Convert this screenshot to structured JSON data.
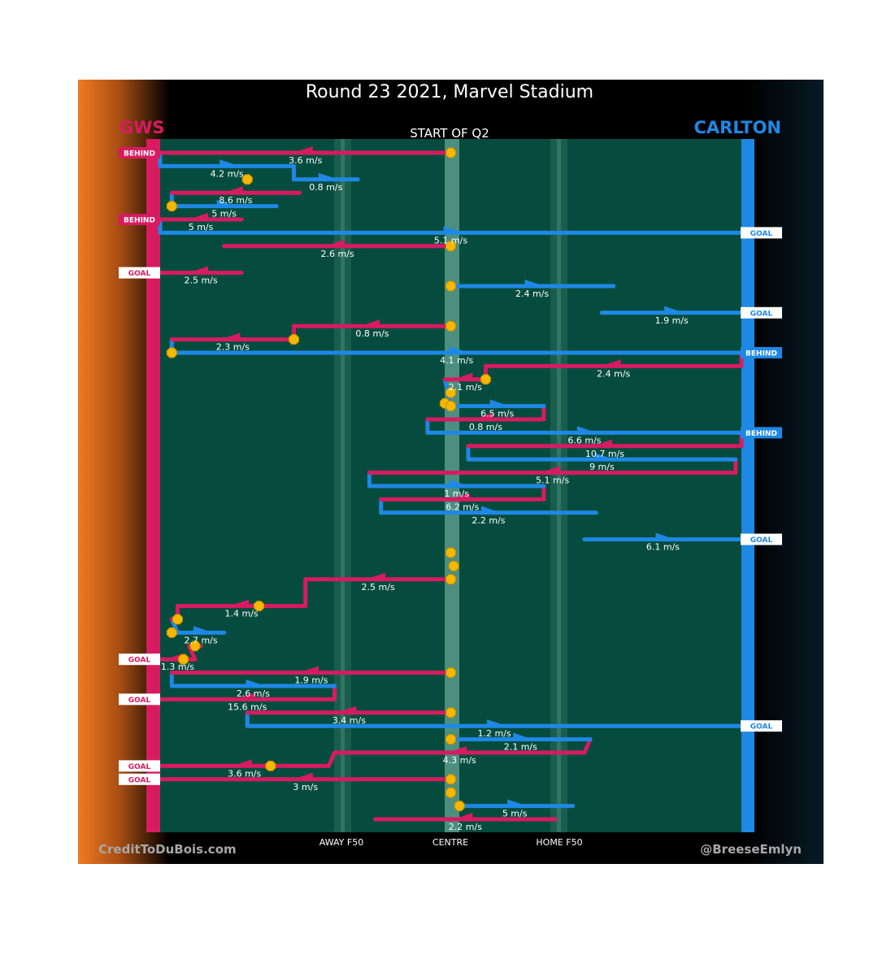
{
  "chart_data": {
    "type": "line",
    "title": "Round 23 2021, Marvel Stadium",
    "subtitle": "START OF Q2",
    "teams": {
      "away": {
        "name": "GWS",
        "color": "#d81b60"
      },
      "home": {
        "name": "CARLTON",
        "color": "#1e88e5"
      }
    },
    "axis_labels": {
      "away_f50": "AWAY F50",
      "centre": "CENTRE",
      "home_f50": "HOME F50"
    },
    "credits": {
      "left": "CreditToDuBois.com",
      "right": "@BreeseEmlyn"
    },
    "x_range": [
      0,
      100
    ],
    "y_range": [
      0,
      51
    ],
    "reference_lines": {
      "away_f50": 30,
      "centre": 50,
      "home_f50": 70
    },
    "badge_colors": {
      "goal_fill": "#ffffff",
      "behind_fill": "#d81b60"
    },
    "marker_color": "#f5b800",
    "events": [
      {
        "x": 0,
        "y": 1,
        "team": "away",
        "outcome": "BEHIND"
      },
      {
        "x": 0,
        "y": 6,
        "team": "away",
        "outcome": "BEHIND"
      },
      {
        "x": 100,
        "y": 7,
        "team": "home",
        "outcome": "GOAL"
      },
      {
        "x": 0,
        "y": 10,
        "team": "away",
        "outcome": "GOAL"
      },
      {
        "x": 100,
        "y": 13,
        "team": "home",
        "outcome": "GOAL"
      },
      {
        "x": 100,
        "y": 16,
        "team": "home",
        "outcome": "BEHIND"
      },
      {
        "x": 100,
        "y": 22,
        "team": "home",
        "outcome": "BEHIND"
      },
      {
        "x": 100,
        "y": 30,
        "team": "home",
        "outcome": "GOAL"
      },
      {
        "x": 0,
        "y": 39,
        "team": "away",
        "outcome": "GOAL"
      },
      {
        "x": 0,
        "y": 42,
        "team": "away",
        "outcome": "GOAL"
      },
      {
        "x": 100,
        "y": 44,
        "team": "home",
        "outcome": "GOAL"
      },
      {
        "x": 0,
        "y": 47,
        "team": "away",
        "outcome": "GOAL"
      },
      {
        "x": 0,
        "y": 48,
        "team": "away",
        "outcome": "GOAL"
      }
    ],
    "stoppages": [
      {
        "x": 50,
        "y": 1
      },
      {
        "x": 15,
        "y": 3
      },
      {
        "x": 2,
        "y": 5
      },
      {
        "x": 50,
        "y": 8
      },
      {
        "x": 50,
        "y": 11
      },
      {
        "x": 50,
        "y": 14
      },
      {
        "x": 23,
        "y": 15
      },
      {
        "x": 2,
        "y": 16
      },
      {
        "x": 56,
        "y": 18
      },
      {
        "x": 50,
        "y": 19
      },
      {
        "x": 49,
        "y": 19.8
      },
      {
        "x": 50,
        "y": 20
      },
      {
        "x": 50,
        "y": 31
      },
      {
        "x": 50.5,
        "y": 32
      },
      {
        "x": 50,
        "y": 33
      },
      {
        "x": 17,
        "y": 35
      },
      {
        "x": 3,
        "y": 36
      },
      {
        "x": 2,
        "y": 37
      },
      {
        "x": 6,
        "y": 38
      },
      {
        "x": 4,
        "y": 39
      },
      {
        "x": 50,
        "y": 40
      },
      {
        "x": 50,
        "y": 43
      },
      {
        "x": 50,
        "y": 45
      },
      {
        "x": 19,
        "y": 47
      },
      {
        "x": 50,
        "y": 48
      },
      {
        "x": 50,
        "y": 49
      },
      {
        "x": 51.5,
        "y": 50
      }
    ],
    "series": [
      {
        "name": "GWS",
        "team": "away",
        "segments": [
          {
            "y": 1,
            "x1": 50,
            "x2": 0,
            "speed": "3.6 m/s"
          },
          {
            "y": 4,
            "x1": 24,
            "x2": 2,
            "speed": "8.6 m/s"
          },
          {
            "y": 6,
            "x1": 14,
            "x2": 0,
            "speed": "5 m/s"
          },
          {
            "y": 8,
            "x1": 50,
            "x2": 11,
            "speed": "2.6 m/s"
          },
          {
            "y": 10,
            "x1": 14,
            "x2": 0,
            "speed": "2.5 m/s"
          },
          {
            "y": 14,
            "x1": 50,
            "x2": 23,
            "speed": "0.8 m/s"
          },
          {
            "y": 15,
            "x1": 23,
            "x2": 2,
            "speed": "2.3 m/s"
          },
          {
            "y": 17,
            "x1": 100,
            "x2": 56,
            "speed": "2.4 m/s"
          },
          {
            "y": 18,
            "x1": 56,
            "x2": 49,
            "speed": "2.1 m/s"
          },
          {
            "y": 21,
            "x1": 66,
            "x2": 46,
            "speed": "0.8 m/s"
          },
          {
            "y": 23,
            "x1": 100,
            "x2": 53,
            "speed": "10.7 m/s"
          },
          {
            "y": 25,
            "x1": 99,
            "x2": 36,
            "speed": "5.1 m/s"
          },
          {
            "y": 27,
            "x1": 66,
            "x2": 38,
            "speed": "6.2 m/s"
          },
          {
            "y": 33,
            "x1": 50,
            "x2": 25,
            "speed": "2.5 m/s"
          },
          {
            "y": 35,
            "x1": 25,
            "x2": 3,
            "speed": "1.4 m/s"
          },
          {
            "y": 36,
            "x1": 3,
            "x2": 2,
            "speed": ""
          },
          {
            "y": 38,
            "x1": 7,
            "x2": 5,
            "speed": ""
          },
          {
            "y": 39,
            "x1": 6,
            "x2": 0,
            "speed": "1.3 m/s"
          },
          {
            "y": 40,
            "x1": 50,
            "x2": 2,
            "speed": "1.9 m/s"
          },
          {
            "y": 42,
            "x1": 30,
            "x2": 0,
            "speed": "15.6 m/s"
          },
          {
            "y": 43,
            "x1": 50,
            "x2": 15,
            "speed": "3.4 m/s"
          },
          {
            "y": 46,
            "x1": 73,
            "x2": 30,
            "speed": "4.3 m/s"
          },
          {
            "y": 47,
            "x1": 29,
            "x2": 0,
            "speed": "3.6 m/s"
          },
          {
            "y": 48,
            "x1": 50,
            "x2": 0,
            "speed": "3 m/s"
          },
          {
            "y": 51,
            "x1": 68,
            "x2": 37,
            "speed": "2.2 m/s"
          }
        ]
      },
      {
        "name": "CARLTON",
        "team": "home",
        "segments": [
          {
            "y": 2,
            "x1": 0,
            "x2": 23,
            "speed": "4.2 m/s"
          },
          {
            "y": 3,
            "x1": 23,
            "x2": 34,
            "speed": "0.8 m/s"
          },
          {
            "y": 5,
            "x1": 2,
            "x2": 20,
            "speed": "5 m/s"
          },
          {
            "y": 7,
            "x1": 0,
            "x2": 100,
            "speed": "5.1 m/s"
          },
          {
            "y": 11,
            "x1": 50,
            "x2": 78,
            "speed": "2.4 m/s"
          },
          {
            "y": 13,
            "x1": 76,
            "x2": 100,
            "speed": "1.9 m/s"
          },
          {
            "y": 16,
            "x1": 2,
            "x2": 100,
            "speed": "4.1 m/s"
          },
          {
            "y": 20,
            "x1": 50,
            "x2": 66,
            "speed": "6.5 m/s"
          },
          {
            "y": 22,
            "x1": 46,
            "x2": 100,
            "speed": "6.6 m/s"
          },
          {
            "y": 24,
            "x1": 53,
            "x2": 99,
            "speed": "9 m/s"
          },
          {
            "y": 26,
            "x1": 36,
            "x2": 66,
            "speed": "1 m/s"
          },
          {
            "y": 28,
            "x1": 38,
            "x2": 75,
            "speed": "2.2 m/s"
          },
          {
            "y": 30,
            "x1": 73,
            "x2": 100,
            "speed": "6.1 m/s"
          },
          {
            "y": 37,
            "x1": 3,
            "x2": 11,
            "speed": "2.7 m/s"
          },
          {
            "y": 41,
            "x1": 2,
            "x2": 30,
            "speed": "2.6 m/s"
          },
          {
            "y": 44,
            "x1": 15,
            "x2": 100,
            "speed": "1.2 m/s"
          },
          {
            "y": 45,
            "x1": 50,
            "x2": 74,
            "speed": "2.1 m/s"
          },
          {
            "y": 50,
            "x1": 51,
            "x2": 71,
            "speed": "5 m/s"
          }
        ]
      }
    ]
  }
}
